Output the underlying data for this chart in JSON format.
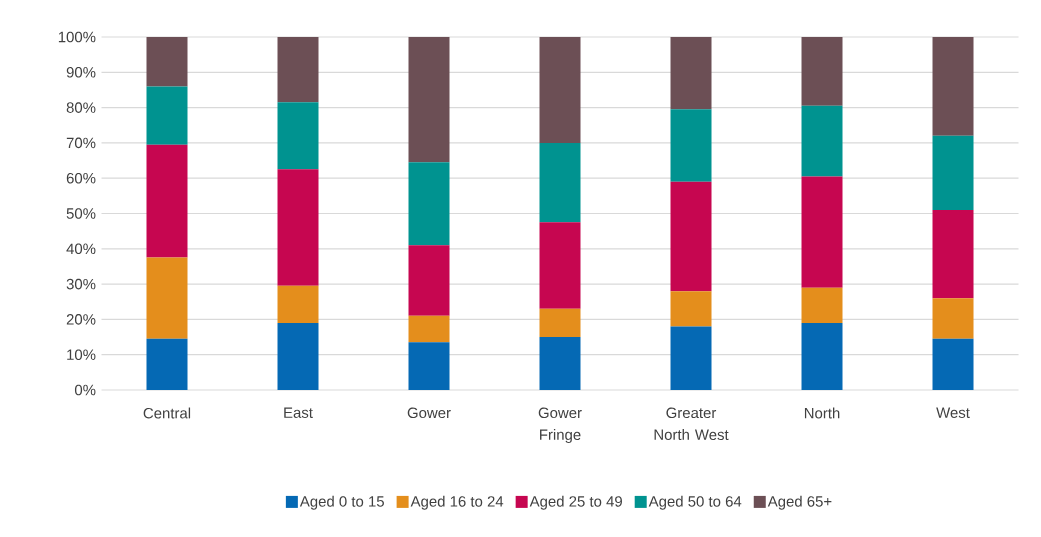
{
  "chart_data": {
    "type": "bar",
    "stacked": true,
    "categories": [
      "Central",
      "East",
      "Gower",
      "Gower Fringe",
      "Greater North West",
      "North",
      "West"
    ],
    "series": [
      {
        "name": "Aged 0 to 15",
        "color": "#0569b4",
        "values": [
          14.5,
          19,
          13.5,
          15,
          18,
          19,
          14.5
        ]
      },
      {
        "name": "Aged 16 to 24",
        "color": "#e48e1c",
        "values": [
          23,
          10.5,
          7.5,
          8,
          10,
          10,
          11.5
        ]
      },
      {
        "name": "Aged 25 to 49",
        "color": "#c60650",
        "values": [
          32,
          33,
          20,
          24.5,
          31,
          31.5,
          25
        ]
      },
      {
        "name": "Aged 50 to 64",
        "color": "#009390",
        "values": [
          16.5,
          19,
          23.5,
          22.5,
          20.5,
          20,
          21
        ]
      },
      {
        "name": "Aged 65+",
        "color": "#6c4f55",
        "values": [
          14,
          18.5,
          35.5,
          30,
          20.5,
          19.5,
          28
        ]
      }
    ],
    "ylim": [
      0,
      100
    ],
    "yticks": [
      {
        "value": 0,
        "label": "0%"
      },
      {
        "value": 10,
        "label": "10%"
      },
      {
        "value": 20,
        "label": "20%"
      },
      {
        "value": 30,
        "label": "30%"
      },
      {
        "value": 40,
        "label": "40%"
      },
      {
        "value": 50,
        "label": "50%"
      },
      {
        "value": 60,
        "label": "60%"
      },
      {
        "value": 70,
        "label": "70%"
      },
      {
        "value": 80,
        "label": "80%"
      },
      {
        "value": 90,
        "label": "90%"
      },
      {
        "value": 100,
        "label": "100%"
      }
    ],
    "grid": "y",
    "legend": "bottom"
  }
}
